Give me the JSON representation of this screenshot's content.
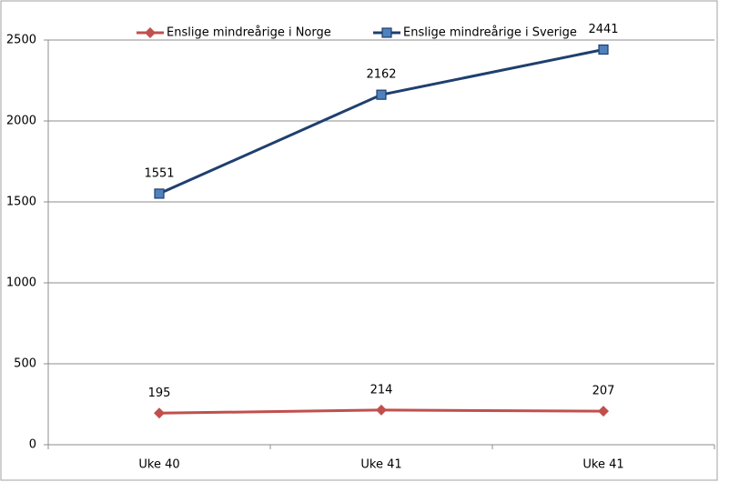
{
  "chart_data": {
    "type": "line",
    "categories": [
      "Uke 40",
      "Uke 41",
      "Uke 41"
    ],
    "series": [
      {
        "name": "Enslige mindreårige i Norge",
        "color": "#c0504d",
        "marker": "diamond",
        "values": [
          195,
          214,
          207
        ]
      },
      {
        "name": "Enslige mindreårige i Sverige",
        "color": "#1f3f6e",
        "marker": "square",
        "values": [
          1551,
          2162,
          2441
        ]
      }
    ],
    "ylim": [
      0,
      2500
    ],
    "yticks": [
      0,
      500,
      1000,
      1500,
      2000,
      2500
    ],
    "grid": true,
    "legend": "top"
  }
}
